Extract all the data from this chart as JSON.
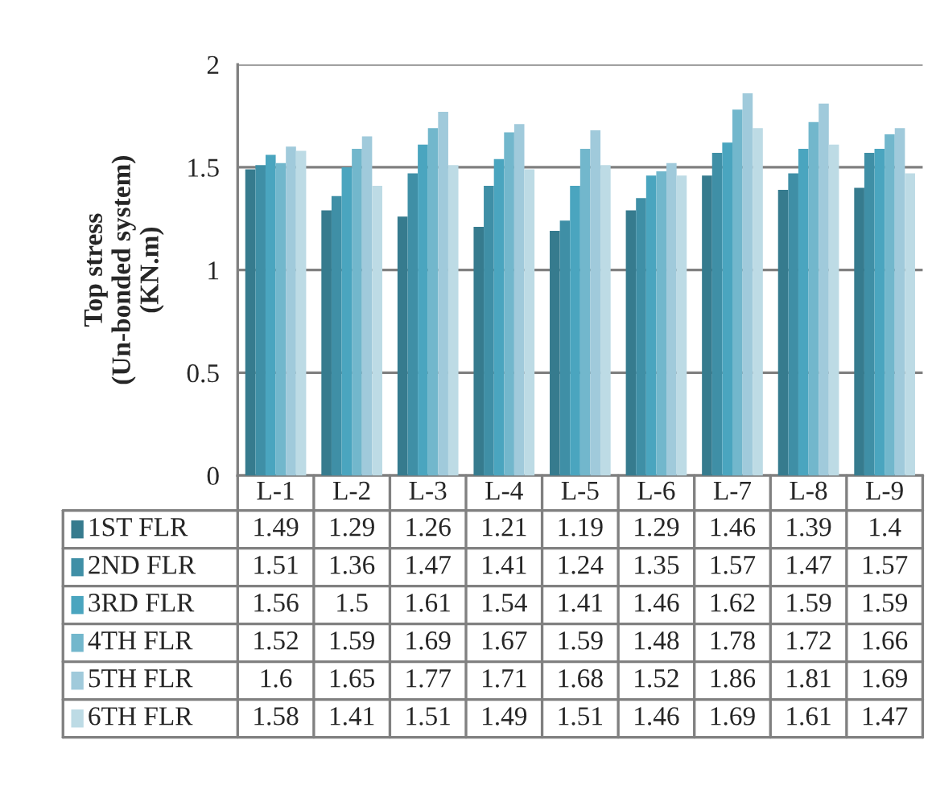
{
  "chart_data": {
    "type": "bar",
    "ylabel": "Top stress\n(Un-bonded system)\n(KN.m)",
    "categories": [
      "L-1",
      "L-2",
      "L-3",
      "L-4",
      "L-5",
      "L-6",
      "L-7",
      "L-8",
      "L-9"
    ],
    "series": [
      {
        "name": "1ST FLR",
        "color": "#367b8e",
        "values": [
          1.49,
          1.29,
          1.26,
          1.21,
          1.19,
          1.29,
          1.46,
          1.39,
          1.4
        ]
      },
      {
        "name": "2ND FLR",
        "color": "#3f8fa6",
        "values": [
          1.51,
          1.36,
          1.47,
          1.41,
          1.24,
          1.35,
          1.57,
          1.47,
          1.57
        ]
      },
      {
        "name": "3RD FLR",
        "color": "#4aa5bf",
        "values": [
          1.56,
          1.5,
          1.61,
          1.54,
          1.41,
          1.46,
          1.62,
          1.59,
          1.59
        ]
      },
      {
        "name": "4TH FLR",
        "color": "#72b7cc",
        "values": [
          1.52,
          1.59,
          1.69,
          1.67,
          1.59,
          1.48,
          1.78,
          1.72,
          1.66
        ]
      },
      {
        "name": "5TH FLR",
        "color": "#a0cadb",
        "values": [
          1.6,
          1.65,
          1.77,
          1.71,
          1.68,
          1.52,
          1.86,
          1.81,
          1.69
        ]
      },
      {
        "name": "6TH FLR",
        "color": "#bddbe5",
        "values": [
          1.58,
          1.41,
          1.51,
          1.49,
          1.51,
          1.46,
          1.69,
          1.61,
          1.47
        ]
      }
    ],
    "ylim": [
      0,
      2
    ],
    "yticks": [
      0,
      0.5,
      1,
      1.5,
      2
    ],
    "grid": "y",
    "legend": "bottom",
    "data_labels": true
  }
}
